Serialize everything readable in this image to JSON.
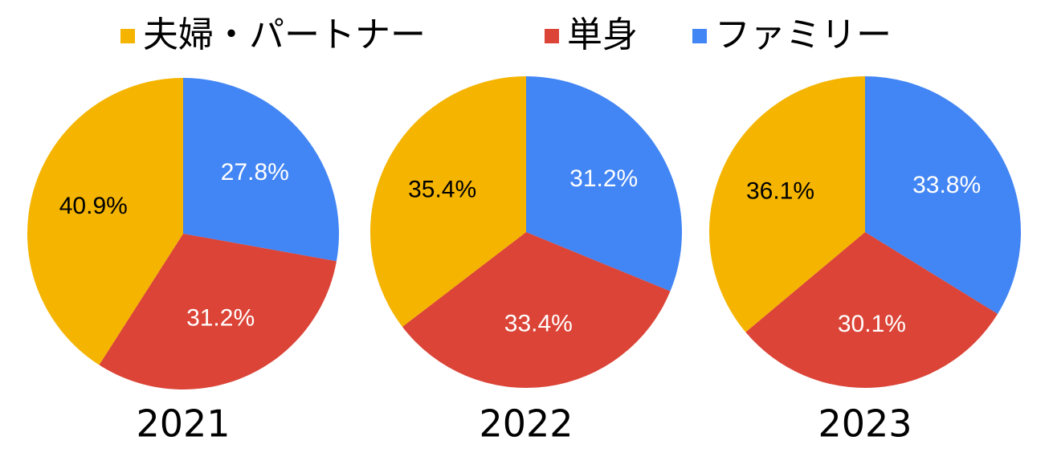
{
  "chart_data": {
    "type": "pie",
    "categories": [
      "夫婦・パートナー",
      "単身",
      "ファミリー"
    ],
    "colors": [
      "#f4b400",
      "#db4437",
      "#4285f4"
    ],
    "label_colors": [
      "#000000",
      "#ffffff",
      "#ffffff"
    ],
    "series": [
      {
        "name": "2021",
        "values": [
          40.9,
          31.2,
          27.8
        ],
        "value_labels": [
          "40.9%",
          "31.2%",
          "27.8%"
        ]
      },
      {
        "name": "2022",
        "values": [
          35.4,
          33.4,
          31.2
        ],
        "value_labels": [
          "35.4%",
          "33.4%",
          "31.2%"
        ]
      },
      {
        "name": "2023",
        "values": [
          36.1,
          30.1,
          33.8
        ],
        "value_labels": [
          "36.1%",
          "30.1%",
          "33.8%"
        ]
      }
    ]
  }
}
